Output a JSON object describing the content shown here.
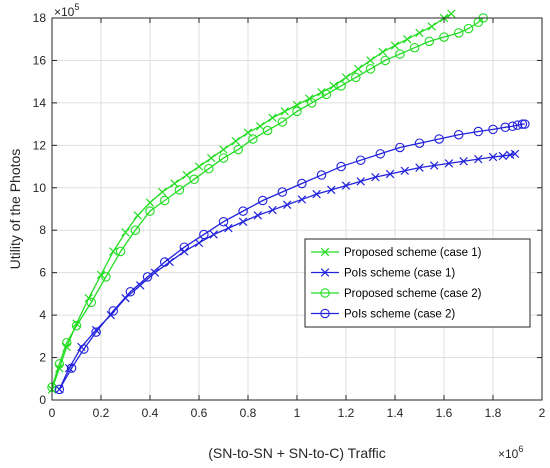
{
  "chart_data": {
    "type": "line",
    "xlabel": "(SN-to-SN + SN-to-C) Traffic",
    "ylabel": "Utility of the Photos",
    "x_exponent_label": "×10",
    "x_exponent_power": "6",
    "y_exponent_label": "×10",
    "y_exponent_power": "5",
    "xlim": [
      0,
      2
    ],
    "ylim": [
      0,
      18
    ],
    "x_ticks": [
      0,
      0.2,
      0.4,
      0.6,
      0.8,
      1,
      1.2,
      1.4,
      1.6,
      1.8,
      2
    ],
    "x_tick_labels": [
      "0",
      "0.2",
      "0.4",
      "0.6",
      "0.8",
      "1",
      "1.2",
      "1.4",
      "1.6",
      "1.8",
      "2"
    ],
    "y_ticks": [
      0,
      2,
      4,
      6,
      8,
      10,
      12,
      14,
      16,
      18
    ],
    "y_tick_labels": [
      "0",
      "2",
      "4",
      "6",
      "8",
      "10",
      "12",
      "14",
      "16",
      "18"
    ],
    "grid": true,
    "legend_position": "center-right",
    "series": [
      {
        "name": "Proposed scheme (case 1)",
        "color": "#22dd22",
        "marker": "x",
        "x": [
          0.0,
          0.03,
          0.06,
          0.1,
          0.15,
          0.2,
          0.25,
          0.3,
          0.35,
          0.4,
          0.45,
          0.5,
          0.55,
          0.6,
          0.65,
          0.7,
          0.75,
          0.8,
          0.85,
          0.9,
          0.95,
          1.0,
          1.05,
          1.1,
          1.15,
          1.2,
          1.25,
          1.3,
          1.35,
          1.4,
          1.45,
          1.5,
          1.55,
          1.6,
          1.63
        ],
        "y": [
          0.5,
          1.5,
          2.5,
          3.6,
          4.8,
          5.9,
          7.0,
          7.9,
          8.7,
          9.3,
          9.8,
          10.2,
          10.6,
          11.0,
          11.4,
          11.8,
          12.2,
          12.6,
          12.9,
          13.3,
          13.6,
          13.9,
          14.2,
          14.5,
          14.8,
          15.2,
          15.6,
          16.0,
          16.4,
          16.7,
          17.0,
          17.3,
          17.6,
          18.0,
          18.2
        ]
      },
      {
        "name": "PoIs scheme (case 1)",
        "color": "#2222dd",
        "marker": "x",
        "x": [
          0.03,
          0.07,
          0.12,
          0.18,
          0.24,
          0.3,
          0.36,
          0.42,
          0.48,
          0.54,
          0.6,
          0.66,
          0.72,
          0.78,
          0.84,
          0.9,
          0.96,
          1.02,
          1.08,
          1.14,
          1.2,
          1.26,
          1.32,
          1.38,
          1.44,
          1.5,
          1.56,
          1.62,
          1.68,
          1.74,
          1.8,
          1.84,
          1.87,
          1.89
        ],
        "y": [
          0.5,
          1.5,
          2.5,
          3.3,
          4.0,
          4.8,
          5.4,
          6.0,
          6.5,
          7.0,
          7.4,
          7.8,
          8.1,
          8.4,
          8.7,
          8.95,
          9.2,
          9.45,
          9.7,
          9.9,
          10.1,
          10.3,
          10.5,
          10.65,
          10.8,
          10.95,
          11.05,
          11.15,
          11.25,
          11.35,
          11.45,
          11.5,
          11.55,
          11.6
        ]
      },
      {
        "name": "Proposed scheme (case 2)",
        "color": "#22dd22",
        "marker": "o",
        "x": [
          0.0,
          0.03,
          0.06,
          0.1,
          0.16,
          0.22,
          0.28,
          0.34,
          0.4,
          0.46,
          0.52,
          0.58,
          0.64,
          0.7,
          0.76,
          0.82,
          0.88,
          0.94,
          1.0,
          1.06,
          1.12,
          1.18,
          1.24,
          1.3,
          1.36,
          1.42,
          1.48,
          1.54,
          1.6,
          1.66,
          1.7,
          1.74,
          1.76
        ],
        "y": [
          0.6,
          1.7,
          2.7,
          3.5,
          4.6,
          5.8,
          7.0,
          8.0,
          8.9,
          9.4,
          9.9,
          10.4,
          10.9,
          11.4,
          11.8,
          12.3,
          12.7,
          13.1,
          13.6,
          14.0,
          14.4,
          14.8,
          15.2,
          15.6,
          16.0,
          16.3,
          16.6,
          16.9,
          17.1,
          17.3,
          17.5,
          17.8,
          18.0
        ]
      },
      {
        "name": "PoIs scheme (case 2)",
        "color": "#2222dd",
        "marker": "o",
        "x": [
          0.03,
          0.08,
          0.13,
          0.18,
          0.25,
          0.32,
          0.39,
          0.46,
          0.54,
          0.62,
          0.7,
          0.78,
          0.86,
          0.94,
          1.02,
          1.1,
          1.18,
          1.26,
          1.34,
          1.42,
          1.5,
          1.58,
          1.66,
          1.74,
          1.8,
          1.85,
          1.88,
          1.9,
          1.92,
          1.93
        ],
        "y": [
          0.5,
          1.5,
          2.4,
          3.2,
          4.2,
          5.1,
          5.8,
          6.5,
          7.2,
          7.8,
          8.4,
          8.9,
          9.4,
          9.8,
          10.2,
          10.6,
          11.0,
          11.3,
          11.6,
          11.9,
          12.1,
          12.3,
          12.5,
          12.65,
          12.75,
          12.85,
          12.9,
          12.95,
          13.0,
          13.0
        ]
      }
    ]
  }
}
